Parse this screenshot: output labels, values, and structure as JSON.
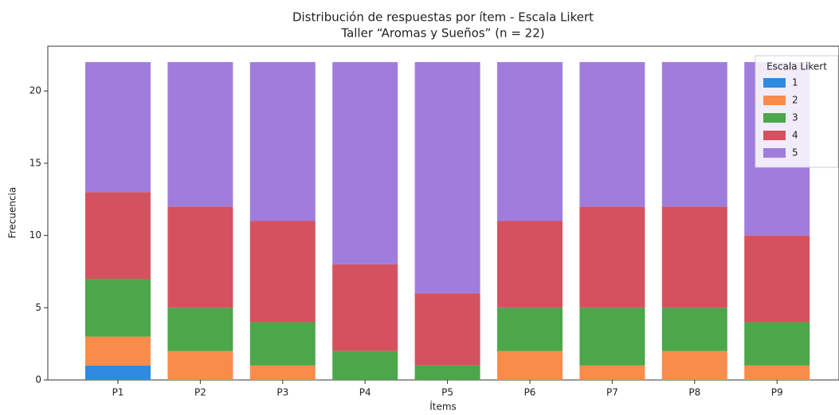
{
  "chart_data": {
    "type": "stacked_bar",
    "title": "Distribución de respuestas por ítem - Escala Likert",
    "subtitle": "Taller “Aromas y Sueños” (n = 22)",
    "x_label": "Ítems",
    "y_label": "Frecuencia",
    "categories": [
      "P1",
      "P2",
      "P3",
      "P4",
      "P5",
      "P6",
      "P7",
      "P8",
      "P9"
    ],
    "series": [
      {
        "name": "1",
        "color": "#2f8be0",
        "values": [
          1,
          0,
          0,
          0,
          0,
          0,
          0,
          0,
          0
        ]
      },
      {
        "name": "2",
        "color": "#f98c4a",
        "values": [
          2,
          2,
          1,
          0,
          0,
          2,
          1,
          2,
          1
        ]
      },
      {
        "name": "3",
        "color": "#4ca64a",
        "values": [
          4,
          3,
          3,
          2,
          1,
          3,
          4,
          3,
          3
        ]
      },
      {
        "name": "4",
        "color": "#d4525f",
        "values": [
          6,
          7,
          7,
          6,
          5,
          6,
          7,
          7,
          6
        ]
      },
      {
        "name": "5",
        "color": "#a07ddc",
        "values": [
          9,
          10,
          11,
          14,
          16,
          11,
          10,
          10,
          12
        ]
      }
    ],
    "legend_title": "Escala Likert",
    "legend": "upper right",
    "ylim": [
      0,
      23.1
    ],
    "yticks": [
      0,
      5,
      10,
      15,
      20
    ]
  }
}
